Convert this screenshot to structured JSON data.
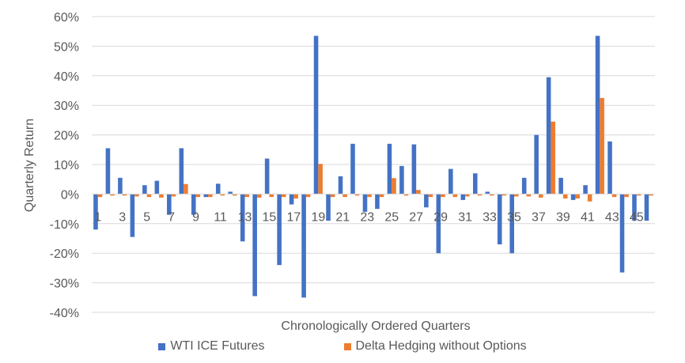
{
  "chart_data": {
    "type": "bar",
    "title": "",
    "xlabel": "Chronologically Ordered Quarters",
    "ylabel": "Quarterly Return",
    "ylim": [
      -40,
      60
    ],
    "y_tick_labels": [
      "60%",
      "50%",
      "40%",
      "30%",
      "20%",
      "10%",
      "0%",
      "-10%",
      "-20%",
      "-30%",
      "-40%"
    ],
    "x_tick_labels": [
      "1",
      "3",
      "5",
      "7",
      "9",
      "11",
      "13",
      "15",
      "17",
      "19",
      "21",
      "23",
      "25",
      "27",
      "29",
      "31",
      "33",
      "35",
      "37",
      "39",
      "41",
      "43",
      "45"
    ],
    "categories": [
      "1",
      "2",
      "3",
      "4",
      "5",
      "6",
      "7",
      "8",
      "9",
      "10",
      "11",
      "12",
      "13",
      "14",
      "15",
      "16",
      "17",
      "18",
      "19",
      "20",
      "21",
      "22",
      "23",
      "24",
      "25",
      "26",
      "27",
      "28",
      "29",
      "30",
      "31",
      "32",
      "33",
      "34",
      "35",
      "36",
      "37",
      "38",
      "39",
      "40",
      "41",
      "42",
      "43",
      "44",
      "45",
      "46"
    ],
    "grid": true,
    "legend_position": "bottom",
    "series": [
      {
        "name": "WTI ICE Futures",
        "color": "#4472C4",
        "values": [
          -12,
          15.5,
          5.5,
          -14.5,
          3,
          4.5,
          -7,
          15.5,
          -7,
          -1,
          3.5,
          0.8,
          -16,
          -34.5,
          12,
          -24,
          -3.5,
          -35,
          53.5,
          -9,
          6,
          17,
          -6,
          -5,
          17,
          9.5,
          16.8,
          -4.5,
          -20,
          8.5,
          -2,
          7,
          0.8,
          -17,
          -20,
          5.5,
          20,
          39.5,
          5.5,
          -2,
          3,
          53.5,
          17.8,
          -26.5,
          -9,
          -9
        ]
      },
      {
        "name": "Delta Hedging without Options",
        "color": "#ED7D31",
        "values": [
          -1,
          -0.5,
          -0.5,
          -0.8,
          -1,
          -1.2,
          -0.8,
          3.4,
          -1,
          -1,
          -0.5,
          -0.5,
          -1,
          -1.2,
          -1,
          -1,
          -1.5,
          -1,
          10.2,
          -1,
          -1,
          -0.5,
          -1,
          -1,
          5.4,
          -0.5,
          1.4,
          -1,
          -1,
          -1,
          -0.8,
          -0.5,
          -0.5,
          -0.5,
          -0.8,
          -0.8,
          -1.2,
          24.5,
          -1.5,
          -1.5,
          -2.5,
          32.5,
          -1,
          -1,
          -0.5,
          -0.5
        ]
      }
    ]
  }
}
